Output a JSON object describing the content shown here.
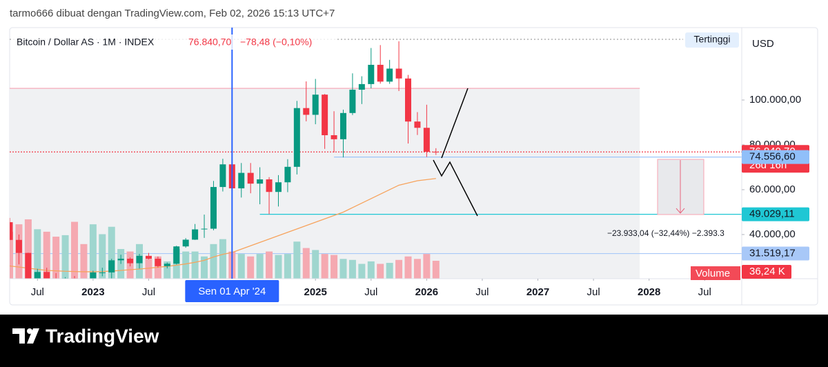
{
  "header": {
    "caption": "tarmo666 dibuat dengan TradingView.com, Feb 02, 2026 15:13 UTC+7"
  },
  "footer": {
    "brand": "TradingView"
  },
  "chart_data": {
    "type": "candlestick",
    "title": "Bitcoin / Dollar AS · 1M · INDEX",
    "price_text": "76.840,70",
    "change_text": "−78,48 (−0,10%)",
    "currency": "USD",
    "high_label": "Tertinggi",
    "up_color": "#089981",
    "down_color": "#f23645",
    "x": [
      "2022-04",
      "2022-05",
      "2022-06",
      "2022-07",
      "2022-08",
      "2022-09",
      "2022-10",
      "2022-11",
      "2022-12",
      "2023-01",
      "2023-02",
      "2023-03",
      "2023-04",
      "2023-05",
      "2023-06",
      "2023-07",
      "2023-08",
      "2023-09",
      "2023-10",
      "2023-11",
      "2023-12",
      "2024-01",
      "2024-02",
      "2024-03",
      "2024-04",
      "2024-05",
      "2024-06",
      "2024-07",
      "2024-08",
      "2024-09",
      "2024-10",
      "2024-11",
      "2024-12",
      "2025-01",
      "2025-02",
      "2025-03",
      "2025-04",
      "2025-05",
      "2025-06",
      "2025-07",
      "2025-08",
      "2025-09",
      "2025-10",
      "2025-11",
      "2025-12",
      "2026-01",
      "2026-02"
    ],
    "open": [
      45500,
      37600,
      31800,
      19900,
      23300,
      20000,
      19400,
      20500,
      17200,
      16500,
      23100,
      23100,
      28500,
      29200,
      27200,
      30500,
      29200,
      25900,
      27000,
      34700,
      37700,
      42300,
      42600,
      61200,
      71300,
      60600,
      67500,
      62700,
      64600,
      59000,
      63300,
      70200,
      96400,
      93400,
      102400,
      84300,
      82500,
      94200,
      104600,
      107100,
      115700,
      108200,
      114000,
      109600,
      90400,
      87600,
      76919
    ],
    "high": [
      47400,
      40000,
      31900,
      24700,
      25200,
      22800,
      21000,
      21500,
      18400,
      23900,
      25200,
      29200,
      31000,
      29800,
      31400,
      31800,
      30200,
      27500,
      35000,
      38400,
      44700,
      48900,
      63900,
      73800,
      72800,
      71900,
      71900,
      70000,
      65600,
      66500,
      73600,
      99600,
      108300,
      109400,
      102700,
      95000,
      95700,
      111900,
      110600,
      123200,
      124500,
      117900,
      126200,
      111200,
      94600,
      97900,
      78500
    ],
    "low": [
      37700,
      26700,
      17600,
      18800,
      19500,
      18100,
      18200,
      15500,
      16300,
      16500,
      21400,
      19600,
      26900,
      25800,
      24800,
      28900,
      25300,
      24900,
      26600,
      34100,
      37600,
      38500,
      41900,
      59200,
      56600,
      56500,
      58400,
      53500,
      49100,
      52500,
      58900,
      66800,
      90500,
      89200,
      78200,
      76600,
      74400,
      93300,
      98200,
      105200,
      107300,
      107200,
      104000,
      80600,
      84400,
      74600,
      75500
    ],
    "close": [
      37600,
      31800,
      19900,
      23300,
      20000,
      19400,
      20500,
      17200,
      16500,
      23100,
      23100,
      28500,
      29200,
      27200,
      30500,
      29200,
      25900,
      27000,
      34700,
      37700,
      42300,
      42600,
      61200,
      71300,
      60600,
      67500,
      62700,
      64600,
      59000,
      63300,
      70200,
      96400,
      93400,
      102400,
      84300,
      82500,
      94200,
      104600,
      107100,
      115700,
      108200,
      114000,
      109600,
      90400,
      87600,
      76919,
      76840.7
    ],
    "volume": {
      "name": "Volume",
      "up_color": "#9fd6cf",
      "down_color": "#f5a9b1",
      "values": [
        95000,
        110000,
        120000,
        100000,
        95000,
        85000,
        88000,
        115000,
        70000,
        110000,
        90000,
        105000,
        60000,
        55000,
        70000,
        40000,
        45000,
        35000,
        60000,
        55000,
        55000,
        45000,
        70000,
        80000,
        55000,
        50000,
        45000,
        50000,
        55000,
        48000,
        50000,
        75000,
        62000,
        58000,
        50000,
        48000,
        40000,
        38000,
        30000,
        35000,
        30000,
        32000,
        38000,
        45000,
        40000,
        50000,
        36240
      ],
      "last_label": "36,24 K"
    },
    "vlim": [
      0,
      507700
    ],
    "ma": {
      "color": "#f7a35c",
      "values": [
        26000,
        25500,
        25000,
        24500,
        24000,
        23800,
        23600,
        23500,
        23400,
        23400,
        23500,
        23700,
        24000,
        24300,
        24600,
        25000,
        25400,
        25800,
        26300,
        26900,
        27600,
        28500,
        30000,
        31200,
        32000,
        33500,
        35000,
        36500,
        38000,
        39500,
        41000,
        42500,
        44000,
        45500,
        47000,
        48500,
        50000,
        52000,
        54000,
        56000,
        58000,
        60000,
        62000,
        63000,
        64000,
        64500,
        65000
      ]
    },
    "xlim": [
      "2022-04",
      "2028-11"
    ],
    "ylim": [
      20300,
      132300
    ],
    "xticks": [
      {
        "value": "2022-07",
        "label": "Jul"
      },
      {
        "value": "2023-01",
        "label": "2023"
      },
      {
        "value": "2023-07",
        "label": "Jul"
      },
      {
        "value": "2025-01",
        "label": "2025"
      },
      {
        "value": "2025-07",
        "label": "Jul"
      },
      {
        "value": "2026-01",
        "label": "2026"
      },
      {
        "value": "2026-07",
        "label": "Jul"
      },
      {
        "value": "2027-01",
        "label": "2027"
      },
      {
        "value": "2027-07",
        "label": "Jul"
      },
      {
        "value": "2028-01",
        "label": "2028"
      },
      {
        "value": "2028-07",
        "label": "Jul"
      }
    ],
    "yticks": [
      {
        "value": 40000,
        "label": "40.000,00"
      },
      {
        "value": 60000,
        "label": "60.000,00"
      },
      {
        "value": 80000,
        "label": "80.000,00"
      },
      {
        "value": 100000,
        "label": "100.000,00"
      }
    ],
    "levels": [
      {
        "value": 105200,
        "color": "#f7a1b0",
        "end": "2027-12"
      },
      {
        "value": 76840.7,
        "label": "76.840,70",
        "countdown": "26d 16h",
        "color": "#f23645",
        "dotted": true
      },
      {
        "value": 74556.6,
        "label": "74.556,60",
        "color": "#90bff9",
        "start": "2025-03"
      },
      {
        "value": 49029.11,
        "label": "49.029,11",
        "color": "#1fc7d4",
        "start": "2024-07"
      },
      {
        "value": 31519.17,
        "label": "31.519,17",
        "color": "#a8c8f8"
      }
    ],
    "crosshair": {
      "x": "2024-04",
      "label": "Sen 01 Apr '24",
      "color": "#2962ff"
    },
    "measure_label": "−23.933,04 (−32,44%) −2.393.3"
  }
}
